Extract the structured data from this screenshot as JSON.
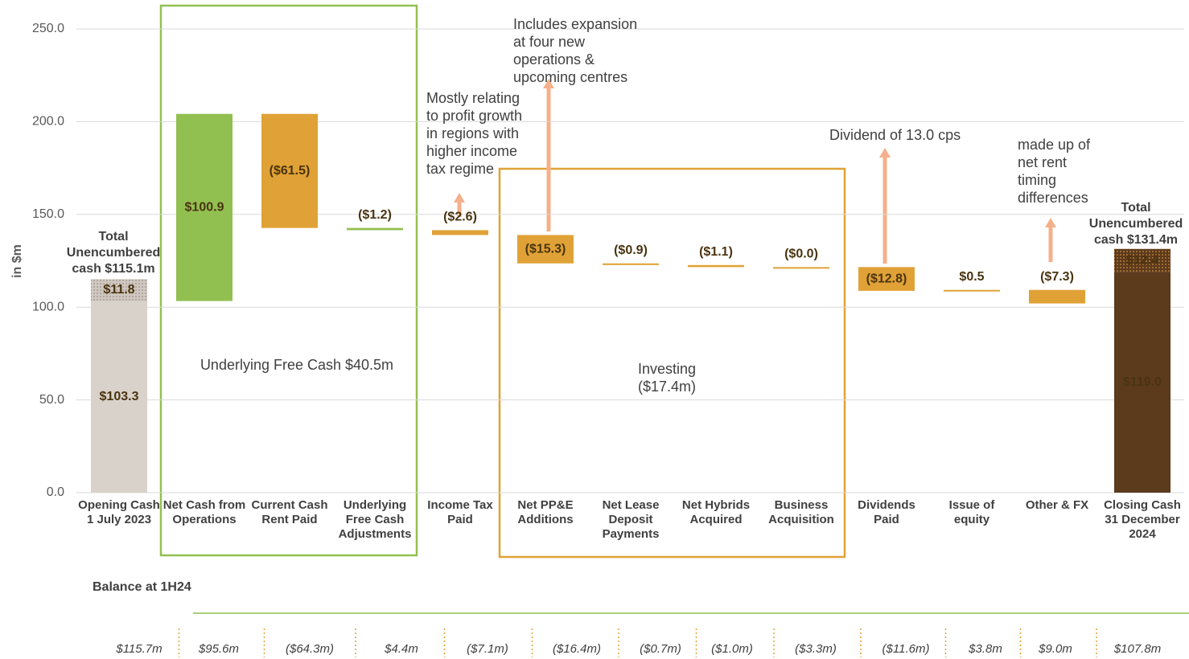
{
  "chart_data": {
    "type": "waterfall",
    "y_label": "in $m",
    "ylim": [
      0,
      250
    ],
    "yticks": [
      {
        "value": 0,
        "label": "0.0"
      },
      {
        "value": 50,
        "label": "50.0"
      },
      {
        "value": 100,
        "label": "100.0"
      },
      {
        "value": 150,
        "label": "150.0"
      },
      {
        "value": 200,
        "label": "200.0"
      },
      {
        "value": 250,
        "label": "250.0"
      }
    ],
    "grid": true,
    "categories": [
      [
        "Opening Cash",
        "1 July 2023"
      ],
      [
        "Net Cash from",
        "Operations"
      ],
      [
        "Current Cash",
        "Rent Paid"
      ],
      [
        "Underlying",
        "Free Cash",
        "Adjustments"
      ],
      [
        "Income Tax",
        "Paid"
      ],
      [
        "Net PP&E",
        "Additions"
      ],
      [
        "Net Lease",
        "Deposit",
        "Payments"
      ],
      [
        "Net Hybrids",
        "Acquired"
      ],
      [
        "Business",
        "Acquisition"
      ],
      [
        "Dividends",
        "Paid"
      ],
      [
        "Issue of",
        "equity"
      ],
      [
        "Other & FX"
      ],
      [
        "Closing Cash",
        "31 December",
        "2024"
      ]
    ],
    "values": [
      103.3,
      100.9,
      -61.5,
      -1.2,
      -2.6,
      -15.3,
      -0.9,
      -1.1,
      -0.0,
      -12.8,
      0.5,
      -7.3,
      119.0
    ],
    "value_labels": [
      "$103.3",
      "$100.9",
      "($61.5)",
      "($1.2)",
      "($2.6)",
      "($15.3)",
      "($0.9)",
      "($1.1)",
      "($0.0)",
      "($12.8)",
      "$0.5",
      "($7.3)",
      "$119.0"
    ],
    "colors": [
      "#d9d2ca",
      "#92c050",
      "#e0a236",
      "#92c050",
      "#e0a236",
      "#e0a236",
      "#e0a236",
      "#e0a236",
      "#e0a236",
      "#e0a236",
      "#e0a236",
      "#e0a236",
      "#5c3a1c"
    ],
    "top_values": [
      11.8,
      null,
      null,
      null,
      null,
      null,
      null,
      null,
      null,
      null,
      null,
      null,
      12.4
    ],
    "top_value_labels": [
      "$11.8",
      null,
      null,
      null,
      null,
      null,
      null,
      null,
      null,
      null,
      null,
      null,
      "$12.4"
    ],
    "annotations": [
      [
        "Total",
        "Unencumbered",
        "cash $115.1m"
      ],
      [
        "Total",
        "Unencumbered",
        "cash $131.4m"
      ],
      [
        "Underlying Free Cash $40.5m"
      ],
      [
        "Investing",
        "($17.4m)"
      ],
      [
        "Mostly relating",
        "to profit growth",
        "in regions with",
        "higher income",
        "tax regime"
      ],
      [
        "Includes expansion",
        "at four new",
        "operations &",
        "upcoming centres"
      ],
      [
        "Dividend of 13.0 cps"
      ],
      [
        "made up of",
        "net rent",
        "timing",
        "differences"
      ]
    ],
    "balance_title": "Balance at 1H24",
    "balance_row": [
      "$115.7m",
      "$95.6m",
      "($64.3m)",
      "$4.4m",
      "($7.1m)",
      "($16.4m)",
      "($0.7m)",
      "($1.0m)",
      "($3.3m)",
      "($11.6m)",
      "$3.8m",
      "$9.0m",
      "$107.8m"
    ]
  }
}
